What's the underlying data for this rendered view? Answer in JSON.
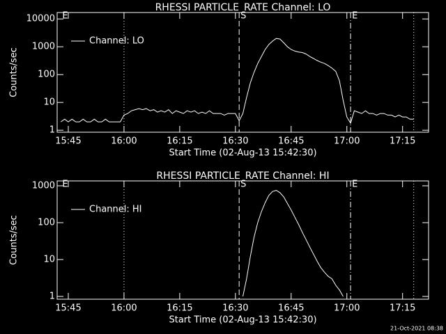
{
  "chart_data": [
    {
      "type": "line",
      "title": "RHESSI PARTICLE_RATE Channel: LO",
      "xlabel": "Start Time (02-Aug-13 15:42:30)",
      "ylabel": "Counts/sec",
      "log_y": true,
      "legend": "upper left",
      "xlim": [
        "15:42",
        "17:22"
      ],
      "xticks": [
        "15:45",
        "16:00",
        "16:15",
        "16:30",
        "16:45",
        "17:00",
        "17:15"
      ],
      "ylim": [
        0.85,
        17000
      ],
      "yticks": [
        1,
        10,
        100,
        1000,
        10000
      ],
      "markers": [
        {
          "x": "15:43",
          "style": "none",
          "label": "E"
        },
        {
          "x": "16:00",
          "style": "dotted"
        },
        {
          "x": "16:31",
          "style": "dashed",
          "label": "S"
        },
        {
          "x": "17:01",
          "style": "dashdot",
          "label": "E"
        },
        {
          "x": "17:18",
          "style": "dotted"
        }
      ],
      "series": [
        {
          "name": "Channel: LO",
          "color": "#ffffff",
          "x": [
            "15:43",
            "15:44",
            "15:45",
            "15:46",
            "15:47",
            "15:48",
            "15:49",
            "15:50",
            "15:51",
            "15:52",
            "15:53",
            "15:54",
            "15:55",
            "15:56",
            "15:57",
            "15:58",
            "15:59",
            "16:00",
            "16:01",
            "16:02",
            "16:03",
            "16:04",
            "16:05",
            "16:06",
            "16:07",
            "16:08",
            "16:09",
            "16:10",
            "16:11",
            "16:12",
            "16:13",
            "16:14",
            "16:15",
            "16:16",
            "16:17",
            "16:18",
            "16:19",
            "16:20",
            "16:21",
            "16:22",
            "16:23",
            "16:24",
            "16:25",
            "16:26",
            "16:27",
            "16:28",
            "16:29",
            "16:30",
            "16:31",
            "16:32",
            "16:33",
            "16:34",
            "16:35",
            "16:36",
            "16:37",
            "16:38",
            "16:39",
            "16:40",
            "16:41",
            "16:42",
            "16:43",
            "16:44",
            "16:45",
            "16:46",
            "16:47",
            "16:48",
            "16:49",
            "16:50",
            "16:51",
            "16:52",
            "16:53",
            "16:54",
            "16:55",
            "16:56",
            "16:57",
            "16:58",
            "16:59",
            "17:00",
            "17:01",
            "17:02",
            "17:03",
            "17:04",
            "17:05",
            "17:06",
            "17:07",
            "17:08",
            "17:09",
            "17:10",
            "17:11",
            "17:12",
            "17:13",
            "17:14",
            "17:15",
            "17:16",
            "17:17",
            "17:18"
          ],
          "values": [
            2,
            2.5,
            2,
            2.5,
            2,
            2,
            2.5,
            2,
            2,
            2.5,
            2,
            2,
            2.5,
            2,
            2,
            2,
            2,
            3.5,
            4,
            5,
            5.5,
            6,
            5.5,
            6,
            5,
            5.5,
            4.5,
            5,
            4.5,
            5.5,
            4,
            5,
            4.5,
            4,
            5,
            4.5,
            5,
            4,
            4.5,
            4,
            5,
            4,
            4,
            4,
            3.5,
            4,
            4,
            4,
            2.2,
            4,
            15,
            50,
            120,
            250,
            450,
            800,
            1200,
            1600,
            2000,
            1900,
            1400,
            1000,
            800,
            700,
            650,
            620,
            550,
            450,
            380,
            320,
            280,
            250,
            210,
            170,
            130,
            60,
            12,
            3,
            1.8,
            5,
            4.5,
            4,
            5,
            4,
            4,
            3.5,
            4,
            4,
            3.5,
            3.5,
            3,
            3.5,
            3,
            3,
            2.5,
            2.5
          ]
        }
      ]
    },
    {
      "type": "line",
      "title": "RHESSI PARTICLE_RATE Channel: HI",
      "xlabel": "Start Time (02-Aug-13 15:42:30)",
      "ylabel": "Counts/sec",
      "log_y": true,
      "legend": "upper left",
      "xlim": [
        "15:42",
        "17:22"
      ],
      "xticks": [
        "15:45",
        "16:00",
        "16:15",
        "16:30",
        "16:45",
        "17:00",
        "17:15"
      ],
      "ylim": [
        0.84,
        1355
      ],
      "yticks": [
        1,
        10,
        100,
        1000
      ],
      "markers": [
        {
          "x": "15:43",
          "style": "none",
          "label": "E"
        },
        {
          "x": "16:00",
          "style": "dotted"
        },
        {
          "x": "16:31",
          "style": "dashed",
          "label": "S"
        },
        {
          "x": "17:01",
          "style": "dashdot",
          "label": "E"
        },
        {
          "x": "17:18",
          "style": "dotted"
        }
      ],
      "series": [
        {
          "name": "Channel: HI",
          "color": "#ffffff",
          "x": [
            "16:32",
            "16:33",
            "16:34",
            "16:35",
            "16:36",
            "16:37",
            "16:38",
            "16:39",
            "16:40",
            "16:41",
            "16:42",
            "16:43",
            "16:44",
            "16:45",
            "16:46",
            "16:47",
            "16:48",
            "16:49",
            "16:50",
            "16:51",
            "16:52",
            "16:53",
            "16:54",
            "16:55",
            "16:56",
            "16:57",
            "16:58",
            "16:59"
          ],
          "values": [
            1,
            3,
            12,
            40,
            100,
            200,
            350,
            550,
            700,
            750,
            650,
            500,
            330,
            220,
            140,
            90,
            55,
            35,
            22,
            14,
            9,
            6,
            4.5,
            3.5,
            3,
            2,
            1.5,
            1
          ]
        }
      ]
    }
  ],
  "footer": "21-Oct-2021 08:38"
}
